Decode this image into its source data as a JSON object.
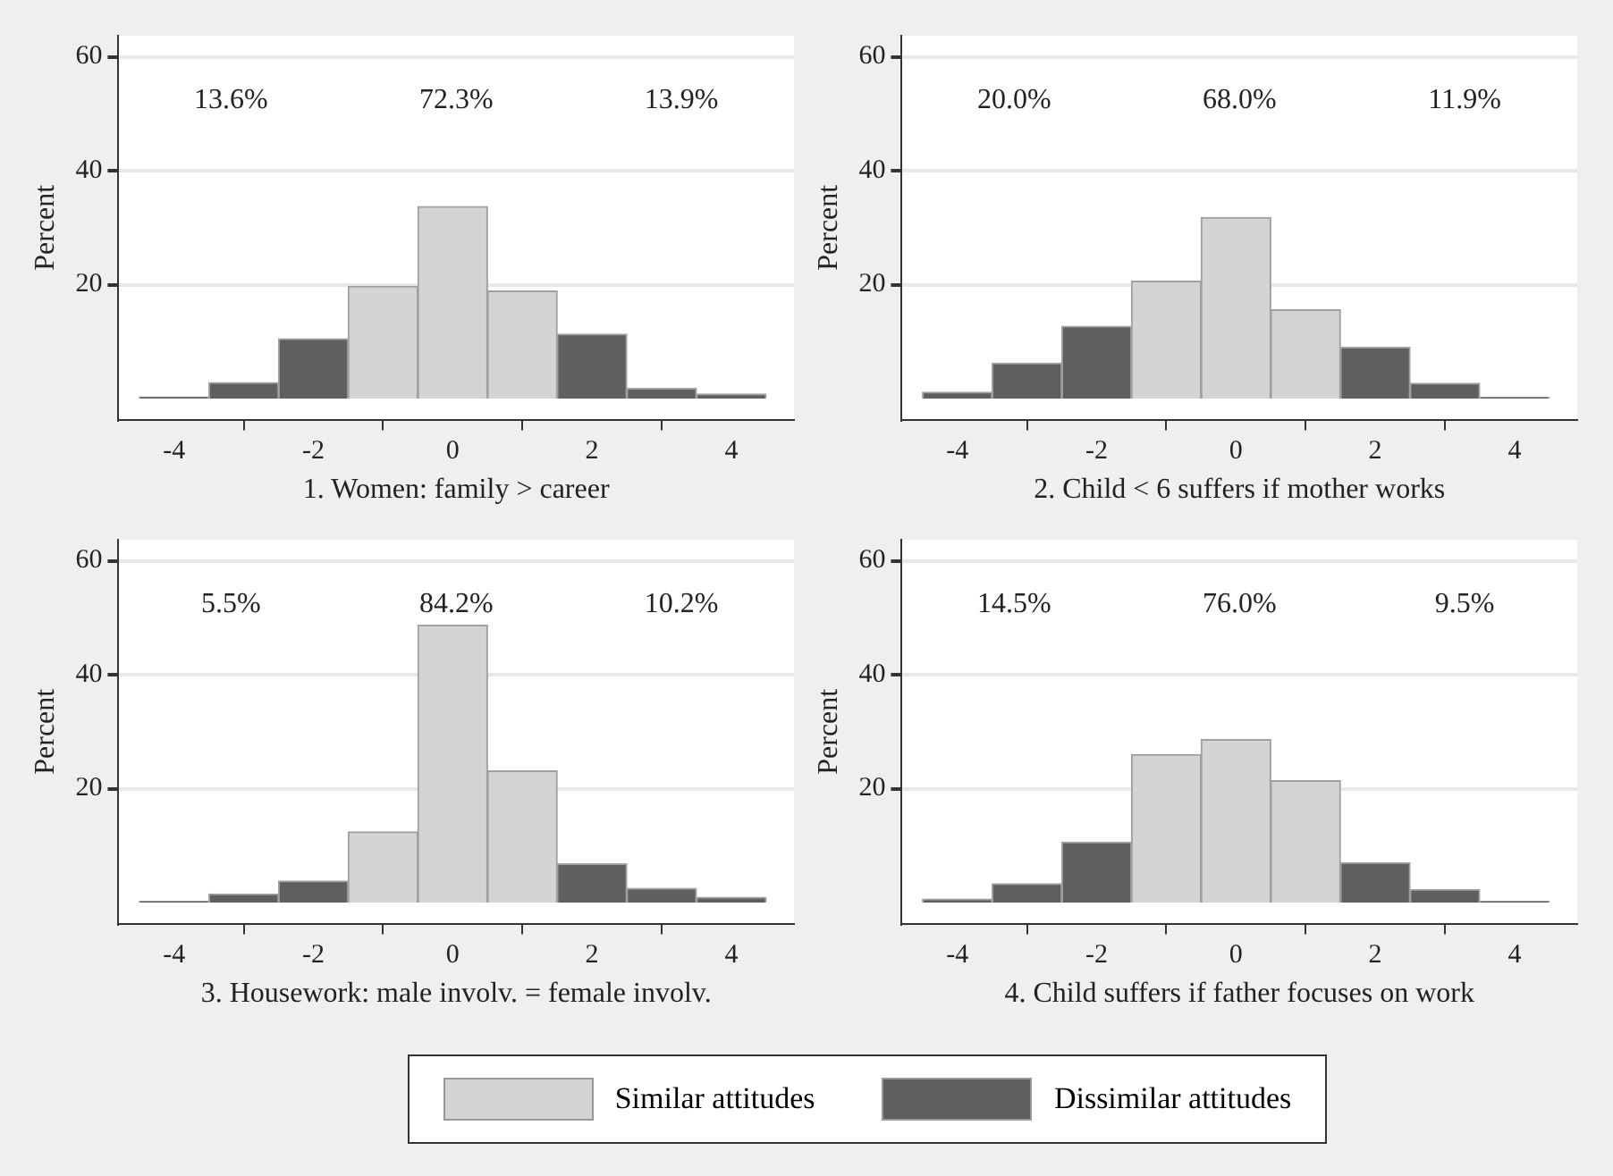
{
  "chart_data": [
    {
      "type": "histogram",
      "xlabel": "1. Women: family > career",
      "ylabel": "Percent",
      "bins": [
        -4.5,
        -3.5,
        -2.5,
        -1.5,
        -0.5,
        0.5,
        1.5,
        2.5,
        3.5,
        4.5
      ],
      "series": [
        {
          "name": "Similar attitudes",
          "color": "#d4d4d4",
          "values": [
            null,
            null,
            null,
            19.7,
            33.7,
            18.9,
            null,
            null,
            null
          ]
        },
        {
          "name": "Dissimilar attitudes",
          "color": "#5f5f5f",
          "values": [
            0.3,
            2.8,
            10.5,
            null,
            null,
            null,
            11.3,
            1.8,
            0.8
          ]
        }
      ],
      "xlim": [
        -4.8,
        4.9
      ],
      "xticks": [
        -4,
        -2,
        0,
        2,
        4
      ],
      "ylim": [
        -3.7,
        63.7
      ],
      "yticks": [
        20,
        40,
        60
      ],
      "grid": "y",
      "legend": "bottom",
      "annotations": [
        "13.6%",
        "72.3%",
        "13.9%"
      ]
    },
    {
      "type": "histogram",
      "xlabel": "2. Child < 6 suffers if mother works",
      "ylabel": "Percent",
      "bins": [
        -4.5,
        -3.5,
        -2.5,
        -1.5,
        -0.5,
        0.5,
        1.5,
        2.5,
        3.5,
        4.5
      ],
      "series": [
        {
          "color": "#d4d4d4",
          "values": [
            null,
            null,
            null,
            20.6,
            31.8,
            15.6,
            null,
            null,
            null
          ]
        },
        {
          "color": "#5f5f5f",
          "values": [
            1.1,
            6.2,
            12.7,
            null,
            null,
            null,
            9.0,
            2.7,
            0.2
          ]
        }
      ],
      "xlim": [
        -4.8,
        4.9
      ],
      "xticks": [
        -4,
        -2,
        0,
        2,
        4
      ],
      "ylim": [
        -3.7,
        63.7
      ],
      "yticks": [
        20,
        40,
        60
      ],
      "grid": "y",
      "annotations": [
        "20.0%",
        "68.0%",
        "11.9%"
      ]
    },
    {
      "type": "histogram",
      "xlabel": "3. Housework: male involv. = female involv.",
      "ylabel": "Percent",
      "bins": [
        -4.5,
        -3.5,
        -2.5,
        -1.5,
        -0.5,
        0.5,
        1.5,
        2.5,
        3.5,
        4.5
      ],
      "series": [
        {
          "color": "#d4d4d4",
          "values": [
            null,
            null,
            null,
            12.4,
            48.7,
            23.1,
            null,
            null,
            null
          ]
        },
        {
          "color": "#5f5f5f",
          "values": [
            0.2,
            1.5,
            3.8,
            null,
            null,
            null,
            6.8,
            2.5,
            0.9
          ]
        }
      ],
      "xlim": [
        -4.8,
        4.9
      ],
      "xticks": [
        -4,
        -2,
        0,
        2,
        4
      ],
      "ylim": [
        -3.7,
        63.7
      ],
      "yticks": [
        20,
        40,
        60
      ],
      "grid": "y",
      "annotations": [
        "5.5%",
        "84.2%",
        "10.2%"
      ]
    },
    {
      "type": "histogram",
      "xlabel": "4. Child suffers if father focuses on work",
      "ylabel": "Percent",
      "bins": [
        -4.5,
        -3.5,
        -2.5,
        -1.5,
        -0.5,
        0.5,
        1.5,
        2.5,
        3.5,
        4.5
      ],
      "series": [
        {
          "color": "#d4d4d4",
          "values": [
            null,
            null,
            null,
            26.0,
            28.6,
            21.4,
            null,
            null,
            null
          ]
        },
        {
          "color": "#5f5f5f",
          "values": [
            0.6,
            3.3,
            10.6,
            null,
            null,
            null,
            7.0,
            2.3,
            0.2
          ]
        }
      ],
      "xlim": [
        -4.8,
        4.9
      ],
      "xticks": [
        -4,
        -2,
        0,
        2,
        4
      ],
      "ylim": [
        -3.7,
        63.7
      ],
      "yticks": [
        20,
        40,
        60
      ],
      "grid": "y",
      "annotations": [
        "14.5%",
        "76.0%",
        "9.5%"
      ]
    }
  ]
}
